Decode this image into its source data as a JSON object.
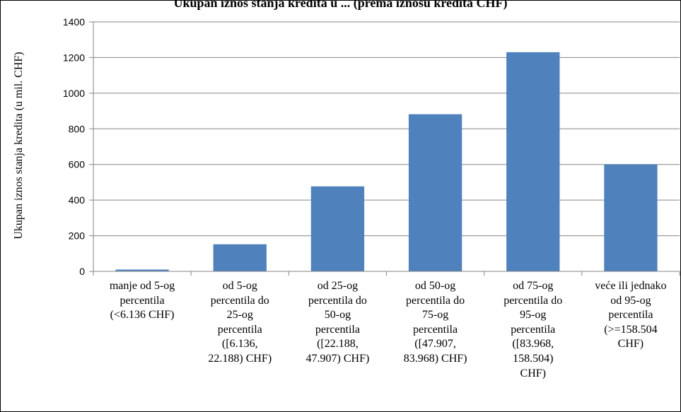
{
  "chart_data": {
    "type": "bar",
    "title": "Ukupan iznos stanja kredita u ... (prema iznosu kredita CHF)",
    "ylabel": "Ukupan iznos stanja kredita (u mil. CHF)",
    "xlabel": "",
    "ylim": [
      0,
      1400
    ],
    "yticks": [
      0,
      200,
      400,
      600,
      800,
      1000,
      1200,
      1400
    ],
    "grid": true,
    "bar_color": "#4F81BD",
    "categories": [
      "manje od 5-og percentila (<6.136 CHF)",
      "od 5-og percentila do 25-og percentila ([6.136, 22.188) CHF)",
      "od 25-og percentila do 50-og percentila ([22.188, 47.907) CHF)",
      "od 50-og percentila do 75-og percentila ([47.907, 83.968) CHF)",
      "od 75-og percentila do 95-og percentila ([83.968, 158.504) CHF)",
      "veće ili jednako od 95-og percentila (>=158.504 CHF)"
    ],
    "category_lines": [
      [
        "manje od 5-og",
        "percentila",
        "(<6.136 CHF)"
      ],
      [
        "od 5-og",
        "percentila do",
        "25-og",
        "percentila",
        "([6.136,",
        "22.188) CHF)"
      ],
      [
        "od 25-og",
        "percentila do",
        "50-og",
        "percentila",
        "([22.188,",
        "47.907) CHF)"
      ],
      [
        "od 50-og",
        "percentila do",
        "75-og",
        "percentila",
        "([47.907,",
        "83.968) CHF)"
      ],
      [
        "od 75-og",
        "percentila do",
        "95-og",
        "percentila",
        "([83.968,",
        "158.504)",
        "CHF)"
      ],
      [
        "veće ili jednako",
        "od 95-og",
        "percentila",
        "(>=158.504",
        "CHF)"
      ]
    ],
    "values": [
      10,
      152,
      477,
      882,
      1230,
      601
    ]
  }
}
